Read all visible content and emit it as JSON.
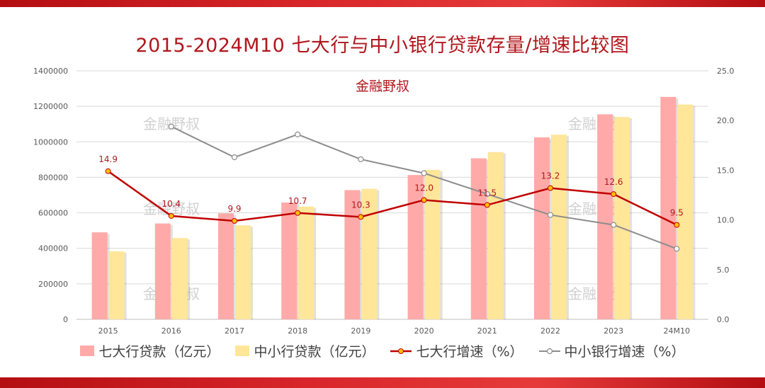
{
  "title": "2015-2024M10 七大行与中小银行贷款存量/增速比较图",
  "subtitle": "金融野叔",
  "watermark": "金融野叔",
  "chart_data": {
    "type": "bar+line",
    "categories": [
      "2015",
      "2016",
      "2017",
      "2018",
      "2019",
      "2020",
      "2021",
      "2022",
      "2023",
      "24M10"
    ],
    "left_axis": {
      "min": 0,
      "max": 1400000,
      "ticks": [
        "0",
        "200000",
        "400000",
        "600000",
        "800000",
        "1000000",
        "1200000",
        "1400000"
      ]
    },
    "right_axis": {
      "min": 0,
      "max": 25,
      "ticks": [
        "0.0",
        "5.0",
        "10.0",
        "15.0",
        "20.0",
        "25.0"
      ]
    },
    "series": [
      {
        "name": "七大行贷款（亿元）",
        "kind": "bar",
        "axis": "left",
        "color": "#ffaaa8",
        "values": [
          490000,
          540000,
          597000,
          658000,
          728000,
          813000,
          907000,
          1025000,
          1155000,
          1253000
        ]
      },
      {
        "name": "中小行贷款（亿元）",
        "kind": "bar",
        "axis": "left",
        "color": "#ffe699",
        "values": [
          383000,
          458000,
          530000,
          635000,
          735000,
          842000,
          942000,
          1040000,
          1140000,
          1210000
        ]
      },
      {
        "name": "七大行增速（%）",
        "kind": "line",
        "axis": "right",
        "color": "#c00000",
        "values": [
          14.9,
          10.4,
          9.9,
          10.7,
          10.3,
          12.0,
          11.5,
          13.2,
          12.6,
          9.5
        ],
        "labels": [
          "14.9",
          "10.4",
          "9.9",
          "10.7",
          "10.3",
          "12.0",
          "11.5",
          "13.2",
          "12.6",
          "9.5"
        ]
      },
      {
        "name": "中小银行增速（%）",
        "kind": "line",
        "axis": "right",
        "color": "#8c8c8c",
        "values": [
          null,
          19.4,
          16.3,
          18.6,
          16.1,
          14.7,
          12.6,
          10.5,
          9.5,
          7.1
        ]
      }
    ],
    "legend_position": "bottom",
    "grid": true
  }
}
